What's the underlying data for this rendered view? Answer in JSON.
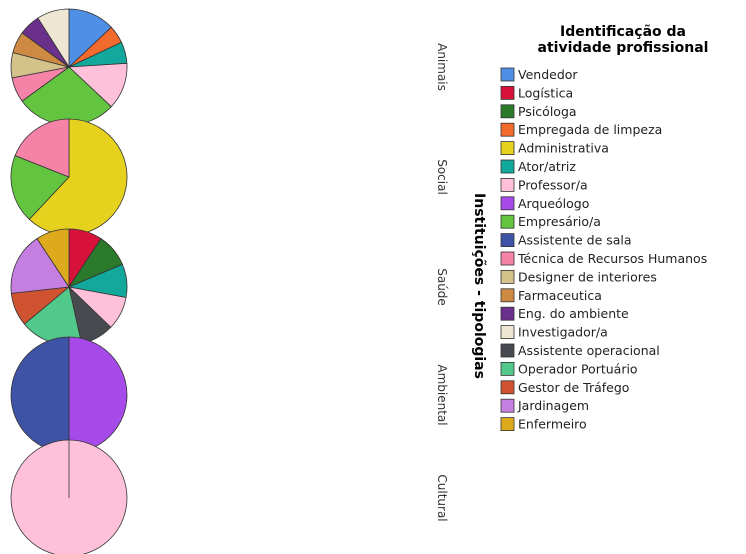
{
  "chart_data": {
    "type": "pie",
    "ylabel": "Instituições - tipologias",
    "legend_title_lines": [
      "Identificação da",
      "atividade profissional"
    ],
    "legend_placement": "right",
    "categories": [
      {
        "name": "Vendedor",
        "color": "#4F8FE6"
      },
      {
        "name": "Logística",
        "color": "#D7123A"
      },
      {
        "name": "Psicóloga",
        "color": "#2B7A2B"
      },
      {
        "name": "Empregada de limpeza",
        "color": "#F26A2C"
      },
      {
        "name": "Administrativa",
        "color": "#E6D21E"
      },
      {
        "name": "Ator/atriz",
        "color": "#12A89B"
      },
      {
        "name": "Professor/a",
        "color": "#FFC1DA"
      },
      {
        "name": "Arqueólogo",
        "color": "#A64BEA"
      },
      {
        "name": "Empresário/a",
        "color": "#63C440"
      },
      {
        "name": "Assistente de sala",
        "color": "#3E53A6"
      },
      {
        "name": "Técnica de Recursos Humanos",
        "color": "#F583A8"
      },
      {
        "name": "Designer de interiores",
        "color": "#D3C28A"
      },
      {
        "name": "Farmaceutica",
        "color": "#CE8A42"
      },
      {
        "name": "Eng. do ambiente",
        "color": "#6B2F8C"
      },
      {
        "name": "Investigador/a",
        "color": "#EEE6D2"
      },
      {
        "name": "Assistente operacional",
        "color": "#474B50"
      },
      {
        "name": "Operador Portuário",
        "color": "#52C98A"
      },
      {
        "name": "Gestor de Tráfego",
        "color": "#CF5331"
      },
      {
        "name": "Jardinagem",
        "color": "#C57FE0"
      },
      {
        "name": "Enfermeiro",
        "color": "#DDAA1E"
      }
    ],
    "facets": [
      {
        "label": "Animais",
        "slices": [
          {
            "category": "Vendedor",
            "value": 13
          },
          {
            "category": "Empregada de limpeza",
            "value": 5
          },
          {
            "category": "Ator/atriz",
            "value": 6
          },
          {
            "category": "Professor/a",
            "value": 13
          },
          {
            "category": "Empresário/a",
            "value": 28
          },
          {
            "category": "Técnica de Recursos Humanos",
            "value": 7
          },
          {
            "category": "Designer de interiores",
            "value": 7
          },
          {
            "category": "Farmaceutica",
            "value": 6
          },
          {
            "category": "Eng. do ambiente",
            "value": 6
          },
          {
            "category": "Investigador/a",
            "value": 9
          }
        ]
      },
      {
        "label": "Social",
        "slices": [
          {
            "category": "Administrativa",
            "value": 62
          },
          {
            "category": "Empresário/a",
            "value": 19
          },
          {
            "category": "Técnica de Recursos Humanos",
            "value": 19
          }
        ]
      },
      {
        "label": "Saúde",
        "slices": [
          {
            "category": "Logística",
            "value": 8
          },
          {
            "category": "Psicóloga",
            "value": 8
          },
          {
            "category": "Ator/atriz",
            "value": 8
          },
          {
            "category": "Professor/a",
            "value": 8
          },
          {
            "category": "Assistente operacional",
            "value": 8
          },
          {
            "category": "Operador Portuário",
            "value": 15
          },
          {
            "category": "Gestor de Tráfego",
            "value": 8
          },
          {
            "category": "Jardinagem",
            "value": 15
          },
          {
            "category": "Enfermeiro",
            "value": 8
          }
        ]
      },
      {
        "label": "Ambiental",
        "slices": [
          {
            "category": "Arqueólogo",
            "value": 50
          },
          {
            "category": "Assistente de sala",
            "value": 50
          }
        ]
      },
      {
        "label": "Cultural",
        "slices": [
          {
            "category": "Professor/a",
            "value": 100
          }
        ]
      }
    ]
  }
}
